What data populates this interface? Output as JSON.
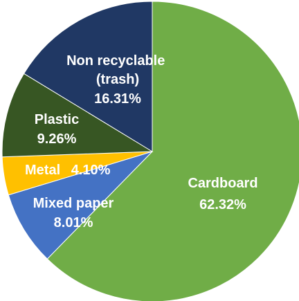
{
  "chart_data": {
    "type": "pie",
    "title": "",
    "slices": [
      {
        "label": "Cardboard",
        "value": 62.32,
        "display": "62.32%",
        "color": "#70ad47"
      },
      {
        "label": "Mixed paper",
        "value": 8.01,
        "display": "8.01%",
        "color": "#4472c4"
      },
      {
        "label": "Metal",
        "value": 4.1,
        "display": "4.10%",
        "color": "#ffc000"
      },
      {
        "label": "Plastic",
        "value": 9.26,
        "display": "9.26%",
        "color": "#375623"
      },
      {
        "label": "Non recyclable (trash)",
        "value": 16.31,
        "display": "16.31%",
        "color": "#203864"
      }
    ],
    "start_position": "12 o'clock",
    "direction": "clockwise",
    "legend": "none",
    "data_labels": "inside slices"
  }
}
